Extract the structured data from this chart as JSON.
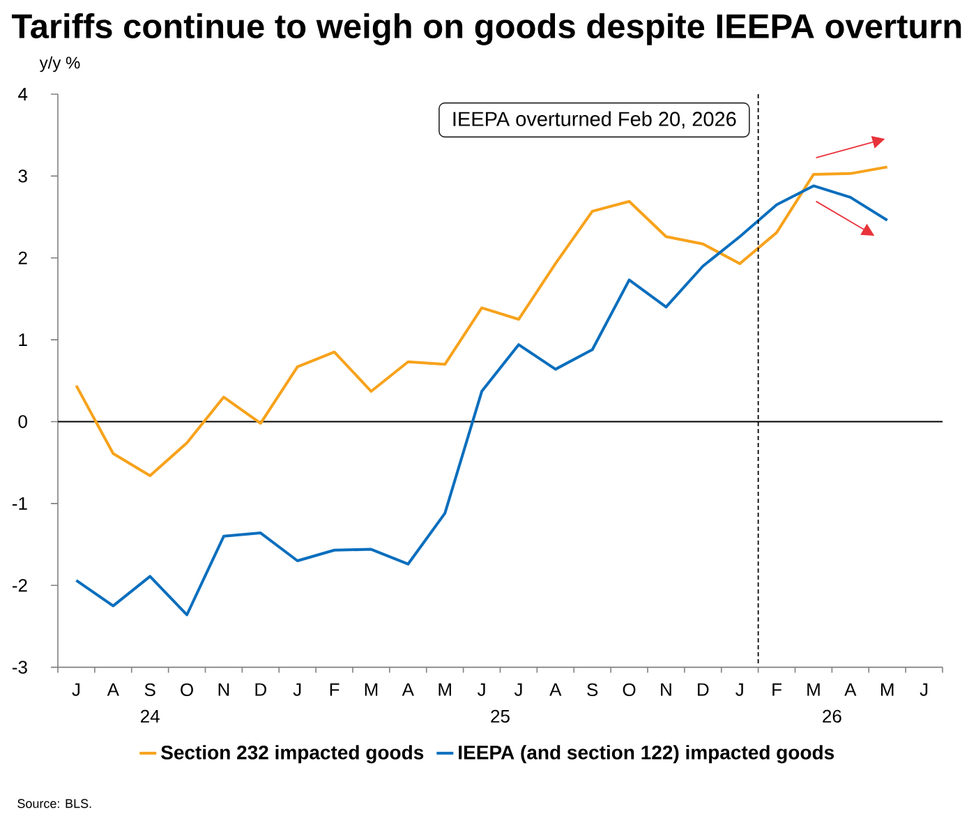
{
  "chart_data": {
    "type": "line",
    "title": "Tariffs continue to weigh on goods despite IEEPA overturn",
    "ylabel": "y/y %",
    "annotations": [
      "IEEPA overturned Feb 20, 2026",
      "24",
      "25",
      "26",
      "Source: BLS."
    ],
    "categories": [
      "J",
      "A",
      "S",
      "O",
      "N",
      "D",
      "J",
      "F",
      "M",
      "A",
      "M",
      "J",
      "J",
      "A",
      "S",
      "O",
      "N",
      "D",
      "J",
      "F",
      "M",
      "A",
      "M",
      "J"
    ],
    "series": [
      {
        "name": "Section 232 impacted goods",
        "color": "#f7a21b",
        "values": [
          0.44,
          -0.39,
          -0.66,
          -0.26,
          0.3,
          -0.02,
          0.67,
          0.85,
          0.37,
          0.73,
          0.7,
          1.39,
          1.25,
          1.93,
          2.57,
          2.69,
          2.26,
          2.17,
          1.93,
          2.31,
          3.02,
          3.03,
          3.11,
          null
        ]
      },
      {
        "name": "IEEPA (and section 122) impacted goods",
        "color": "#0a6ebd",
        "values": [
          -1.94,
          -2.25,
          -1.89,
          -2.36,
          -1.4,
          -1.36,
          -1.7,
          -1.57,
          -1.56,
          -1.74,
          -1.12,
          0.37,
          0.94,
          0.64,
          0.88,
          1.73,
          1.4,
          1.9,
          2.26,
          2.65,
          2.88,
          2.74,
          2.46,
          null
        ]
      }
    ],
    "ylim": [
      -3,
      4
    ],
    "yticks": [
      -3,
      -2,
      -1,
      0,
      1,
      2,
      3,
      4
    ],
    "ref_lines": [
      {
        "axis": "y",
        "value": 0,
        "color": "#000000"
      }
    ],
    "legend": "bottom",
    "marker": "none",
    "line_style": "solid"
  }
}
